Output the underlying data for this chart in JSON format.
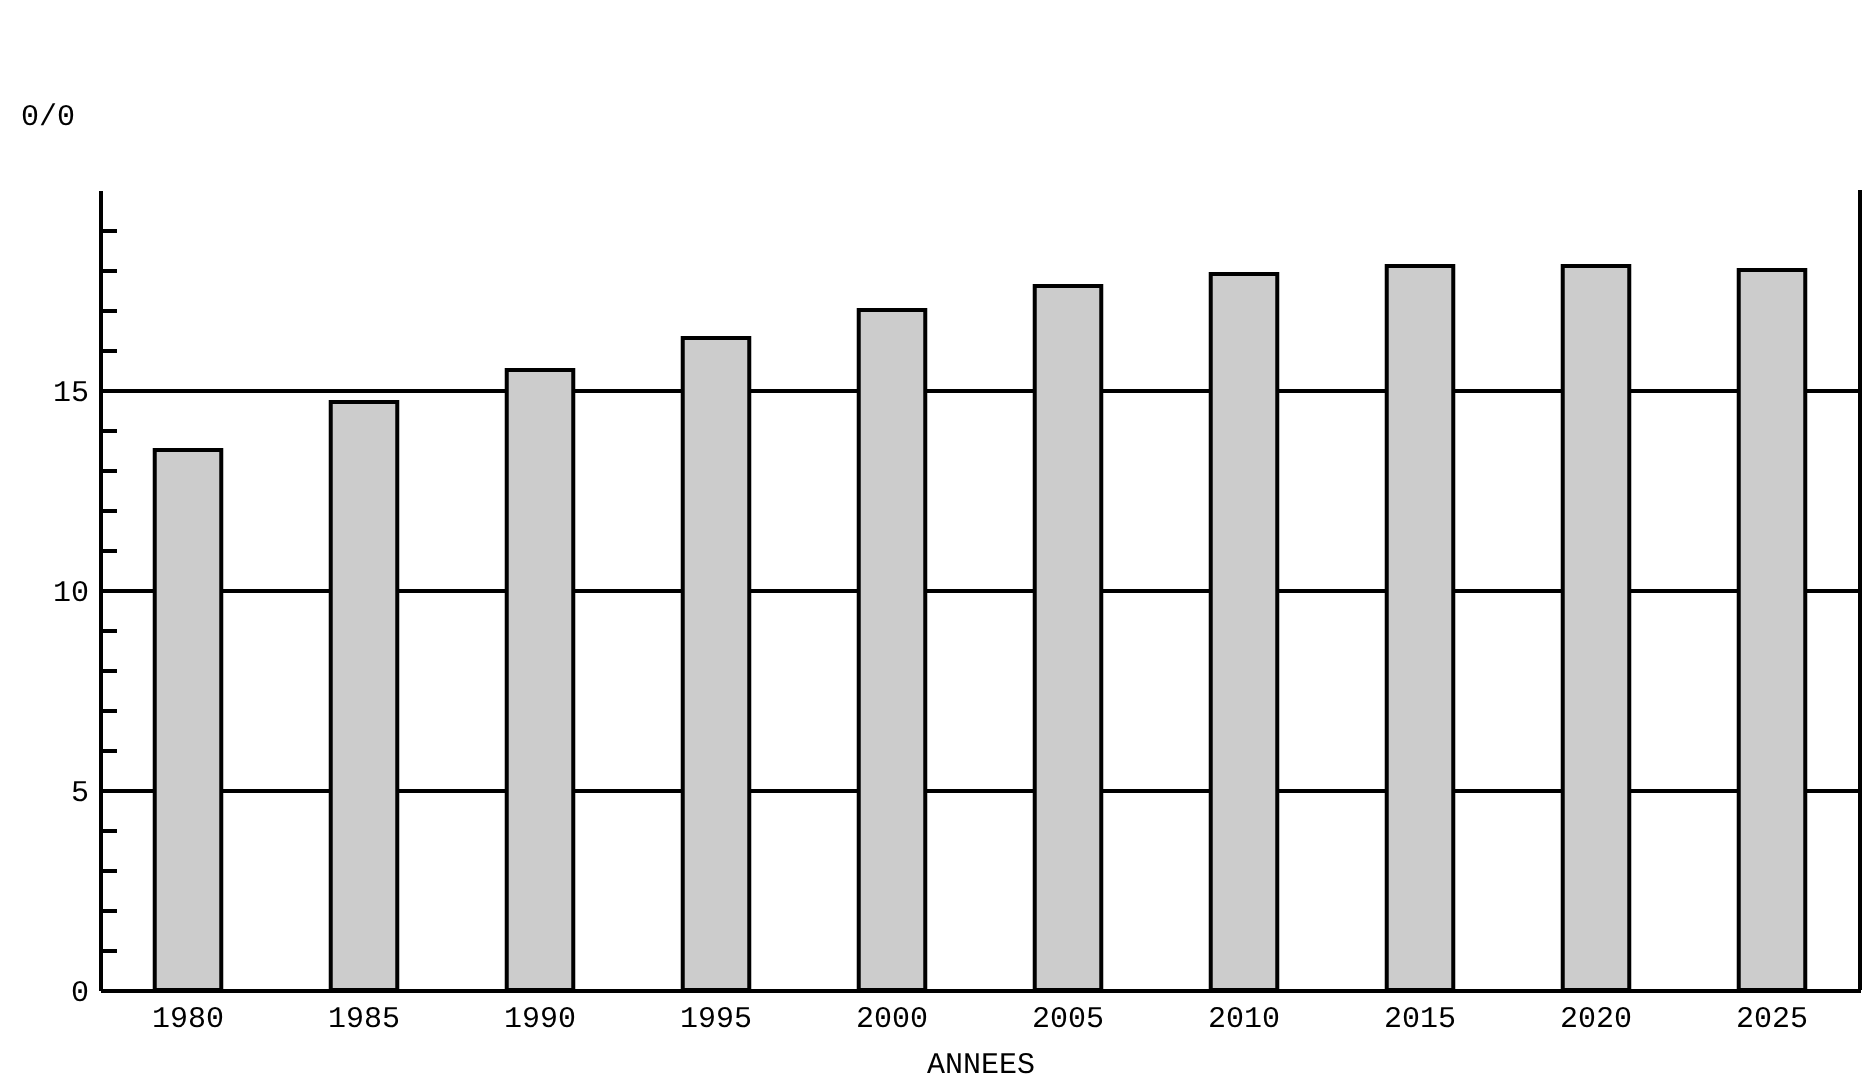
{
  "chart_data": {
    "type": "bar",
    "xlabel": "ANNEES",
    "ylabel": "0/0",
    "categories": [
      "1980",
      "1985",
      "1990",
      "1995",
      "2000",
      "2005",
      "2010",
      "2015",
      "2020",
      "2025"
    ],
    "values": [
      13.5,
      14.7,
      15.5,
      16.3,
      17.0,
      17.6,
      17.9,
      18.1,
      18.1,
      18.0
    ],
    "color": "#cccccc",
    "ylim": [
      0,
      20
    ],
    "yticks": [
      0,
      {
        "value": 1,
        "label": null
      },
      {
        "value": 2,
        "label": null
      },
      {
        "value": 3,
        "label": null
      },
      {
        "value": 4,
        "label": null
      },
      5,
      {
        "value": 6,
        "label": null
      },
      {
        "value": 7,
        "label": null
      },
      {
        "value": 8,
        "label": null
      },
      {
        "value": 9,
        "label": null
      },
      10,
      {
        "value": 11,
        "label": null
      },
      {
        "value": 12,
        "label": null
      },
      {
        "value": 13,
        "label": null
      },
      {
        "value": 14,
        "label": null
      },
      15,
      {
        "value": 16,
        "label": null
      },
      {
        "value": 17,
        "label": null
      },
      {
        "value": 18,
        "label": null
      },
      {
        "value": 19,
        "label": null
      }
    ],
    "grid": "y"
  }
}
